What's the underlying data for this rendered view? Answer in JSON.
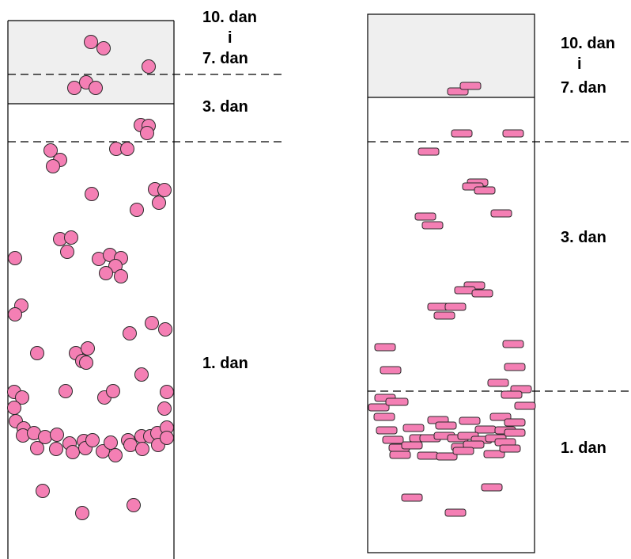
{
  "colors": {
    "particle_fill": "#f47fb4",
    "particle_stroke": "#2a2a2a",
    "band_fill": "#efefef",
    "tube_stroke": "#000000",
    "dashed_line": "#000000"
  },
  "left_panel": {
    "labels": {
      "top_line1": "10. dan",
      "top_line2": "i",
      "top_line3": "7. dan",
      "mid": "3. dan",
      "bottom": "1. dan"
    }
  },
  "right_panel": {
    "labels": {
      "top_line1": "10. dan",
      "top_line2": "i",
      "top_line3": "7. dan",
      "mid": "3. dan",
      "bottom": "1. dan"
    }
  }
}
